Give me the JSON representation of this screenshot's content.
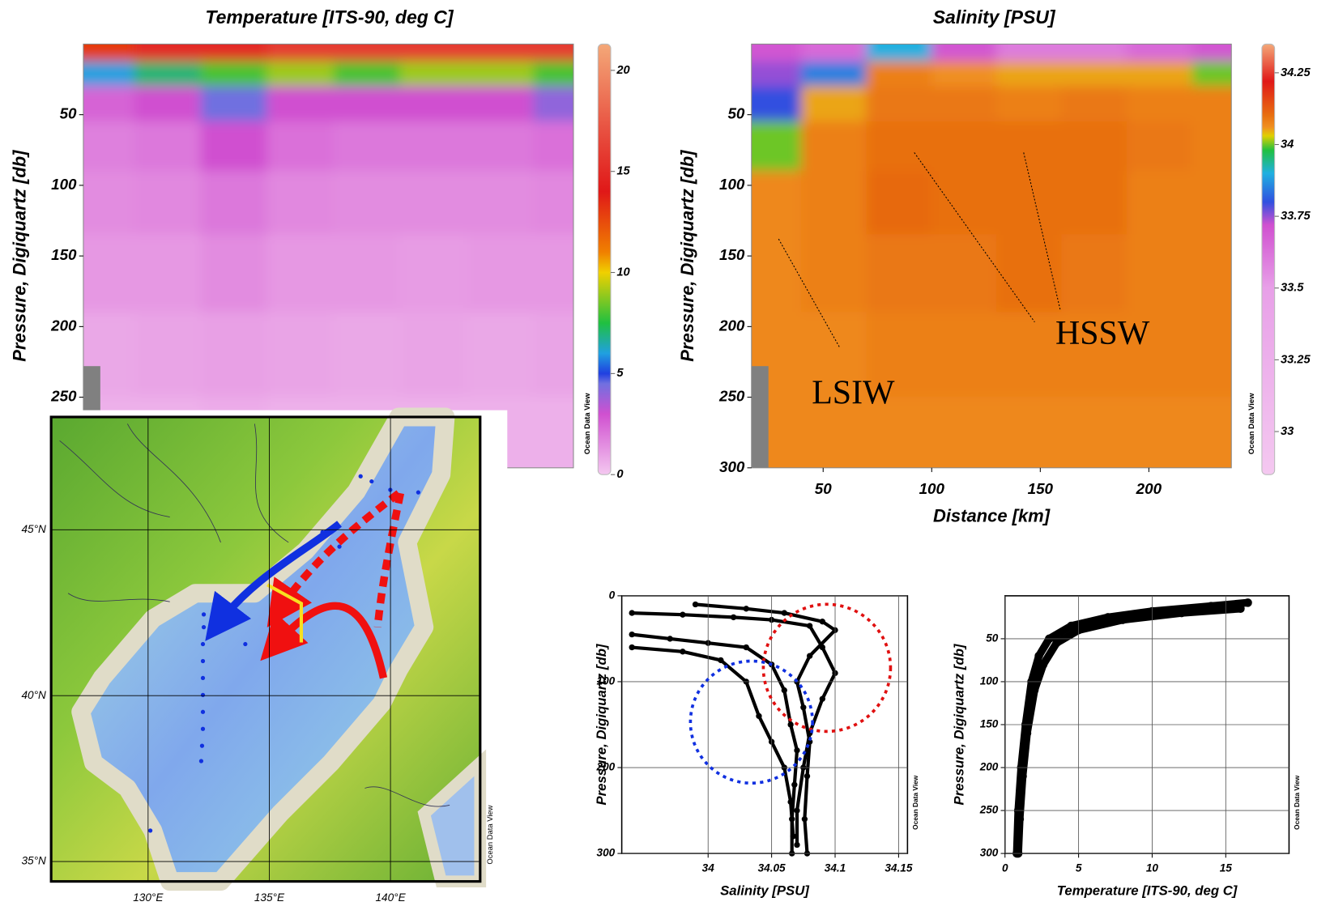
{
  "chart_data": [
    {
      "type": "section",
      "title": "Temperature [ITS-90, deg C]",
      "y_label": "Pressure, Digiquartz [db]",
      "watermark": "Ocean Data View",
      "xlim": [
        17,
        238
      ],
      "ylim": [
        0,
        300
      ],
      "yticks": [
        50,
        100,
        150,
        200,
        250
      ],
      "x": [
        25,
        55,
        85,
        115,
        145,
        175,
        205,
        235
      ],
      "depth": [
        5,
        20,
        40,
        70,
        110,
        160,
        220,
        280
      ],
      "z": [
        [
          13,
          15,
          15,
          16,
          16,
          16,
          16,
          16
        ],
        [
          6,
          7,
          8,
          9,
          8,
          9,
          9,
          8
        ],
        [
          2.5,
          3,
          4.5,
          3,
          3,
          3,
          3,
          4
        ],
        [
          1.8,
          2,
          3,
          2.2,
          2,
          2,
          2,
          2.2
        ],
        [
          1.5,
          1.6,
          2,
          1.6,
          1.5,
          1.5,
          1.5,
          1.6
        ],
        [
          1.2,
          1.2,
          1.5,
          1.2,
          1.2,
          1.1,
          1.2,
          1.2
        ],
        [
          0.8,
          0.9,
          1,
          0.9,
          0.8,
          0.9,
          0.8,
          0.9
        ],
        [
          0.6,
          0.6,
          0.7,
          0.6,
          0.6,
          0.6,
          0.6,
          0.6
        ]
      ],
      "clim": [
        0,
        21.3
      ],
      "cticks": [
        0,
        5,
        10,
        15,
        20
      ],
      "colormap": [
        [
          0,
          "#f4c8f0"
        ],
        [
          3,
          "#d050d0"
        ],
        [
          4.5,
          "#7070e0"
        ],
        [
          5,
          "#2040e0"
        ],
        [
          6,
          "#20a0e0"
        ],
        [
          7.5,
          "#20c040"
        ],
        [
          10,
          "#f0d000"
        ],
        [
          11,
          "#f08000"
        ],
        [
          14,
          "#e01818"
        ],
        [
          17,
          "#e85040"
        ],
        [
          21.3,
          "#f4a878"
        ]
      ]
    },
    {
      "type": "section",
      "title": "Salinity [PSU]",
      "y_label": "Pressure, Digiquartz [db]",
      "x_label": "Distance [km]",
      "watermark": "Ocean Data View",
      "annotations": [
        "LSIW",
        "HSSW"
      ],
      "xlim": [
        17,
        238
      ],
      "ylim": [
        0,
        300
      ],
      "xticks": [
        50,
        100,
        150,
        200
      ],
      "yticks": [
        50,
        100,
        150,
        200,
        250,
        300
      ],
      "x": [
        25,
        55,
        85,
        115,
        145,
        175,
        205,
        235
      ],
      "depth": [
        5,
        20,
        40,
        70,
        110,
        160,
        220,
        280
      ],
      "z": [
        [
          33.7,
          33.65,
          33.9,
          33.7,
          33.6,
          33.6,
          33.65,
          33.7
        ],
        [
          33.75,
          33.85,
          34.08,
          34.06,
          34.05,
          34.05,
          34.05,
          34.0
        ],
        [
          33.8,
          34.05,
          34.09,
          34.09,
          34.08,
          34.09,
          34.08,
          34.08
        ],
        [
          34.0,
          34.08,
          34.1,
          34.1,
          34.1,
          34.1,
          34.09,
          34.08
        ],
        [
          34.07,
          34.08,
          34.11,
          34.1,
          34.1,
          34.1,
          34.08,
          34.08
        ],
        [
          34.07,
          34.08,
          34.09,
          34.09,
          34.1,
          34.09,
          34.08,
          34.08
        ],
        [
          34.07,
          34.07,
          34.08,
          34.08,
          34.08,
          34.08,
          34.08,
          34.08
        ],
        [
          34.07,
          34.07,
          34.07,
          34.07,
          34.07,
          34.07,
          34.07,
          34.07
        ]
      ],
      "clim": [
        32.85,
        34.35
      ],
      "cticks": [
        33,
        33.25,
        33.5,
        33.75,
        34,
        34.25
      ],
      "colormap": [
        [
          32.85,
          "#f4c8f0"
        ],
        [
          33.5,
          "#e8a0e8"
        ],
        [
          33.72,
          "#d050d0"
        ],
        [
          33.8,
          "#3050e0"
        ],
        [
          33.9,
          "#20b0e0"
        ],
        [
          33.98,
          "#20c040"
        ],
        [
          34.03,
          "#e0d000"
        ],
        [
          34.06,
          "#f09020"
        ],
        [
          34.1,
          "#e87010"
        ],
        [
          34.22,
          "#e01818"
        ],
        [
          34.35,
          "#f4a878"
        ]
      ]
    },
    {
      "type": "profile",
      "x_label": "Salinity [PSU]",
      "y_label": "Pressure, Digiquartz [db]",
      "watermark": "Ocean Data View",
      "grid": true,
      "color": "#000000",
      "xlim": [
        33.932,
        34.157
      ],
      "ylim": [
        0,
        300
      ],
      "xticks": [
        34,
        34.05,
        34.1,
        34.15
      ],
      "yticks": [
        0,
        100,
        200,
        300
      ],
      "series": [
        {
          "x": [
            33.94,
            33.98,
            34.02,
            34.05,
            34.08,
            34.09,
            34.1,
            34.09,
            34.08,
            34.075,
            34.07,
            34.07
          ],
          "y": [
            20,
            22,
            25,
            28,
            35,
            60,
            90,
            120,
            160,
            200,
            250,
            290
          ]
        },
        {
          "x": [
            33.94,
            33.97,
            34.0,
            34.03,
            34.05,
            34.06,
            34.065,
            34.07,
            34.068,
            34.066,
            34.066
          ],
          "y": [
            45,
            50,
            55,
            60,
            80,
            110,
            150,
            180,
            220,
            260,
            300
          ]
        },
        {
          "x": [
            33.94,
            33.98,
            34.01,
            34.03,
            34.04,
            34.05,
            34.06,
            34.065,
            34.067
          ],
          "y": [
            60,
            65,
            75,
            100,
            140,
            170,
            200,
            240,
            280
          ]
        },
        {
          "x": [
            33.99,
            34.03,
            34.06,
            34.09,
            34.1,
            34.08,
            34.07,
            34.075,
            34.08,
            34.078,
            34.076,
            34.078
          ],
          "y": [
            10,
            15,
            20,
            30,
            40,
            70,
            100,
            130,
            170,
            210,
            260,
            300
          ]
        }
      ]
    },
    {
      "type": "profile",
      "x_label": "Temperature [ITS-90, deg C]",
      "y_label": "Pressure, Digiquartz [db]",
      "watermark": "Ocean Data View",
      "grid": true,
      "color": "#000000",
      "xlim": [
        0,
        19.3
      ],
      "ylim": [
        0,
        300
      ],
      "xticks": [
        0,
        5,
        10,
        15
      ],
      "yticks": [
        50,
        100,
        150,
        200,
        250,
        300
      ],
      "series": [
        {
          "x": [
            16.5,
            14,
            10,
            7,
            4.5,
            3,
            2.3,
            1.8,
            1.4,
            1.1,
            0.9,
            0.8
          ],
          "y": [
            8,
            12,
            18,
            25,
            35,
            50,
            70,
            100,
            150,
            200,
            250,
            300
          ]
        },
        {
          "x": [
            16,
            12,
            8,
            5,
            3.5,
            2.6,
            2,
            1.5,
            1.2,
            1,
            0.9
          ],
          "y": [
            15,
            20,
            28,
            40,
            55,
            80,
            110,
            160,
            210,
            260,
            300
          ]
        }
      ]
    }
  ],
  "map": {
    "watermark": "Ocean Data View",
    "lonlim": [
      126,
      143.7
    ],
    "latlim": [
      34.4,
      48.4
    ],
    "lat_ticks": [
      {
        "value": 45,
        "label": "45°N"
      },
      {
        "value": 40,
        "label": "40°N"
      },
      {
        "value": 35,
        "label": "35°N"
      }
    ],
    "lon_ticks": [
      {
        "value": 130,
        "label": "130°E"
      },
      {
        "value": 135,
        "label": "135°E"
      },
      {
        "value": 140,
        "label": "140°E"
      }
    ]
  }
}
